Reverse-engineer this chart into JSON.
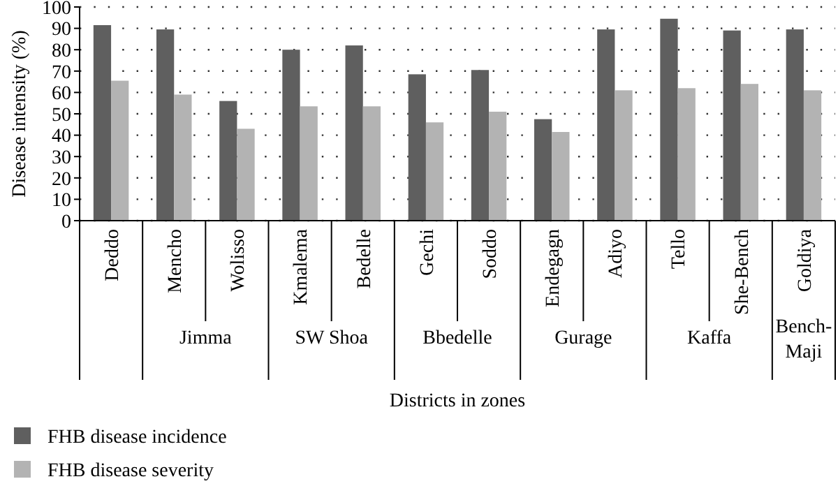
{
  "chart_data": {
    "type": "bar",
    "xlabel": "Districts in zones",
    "ylabel": "Disease intensity (%)",
    "categories": [
      "Deddo",
      "Mencho",
      "Wolisso",
      "Kmalema",
      "Bedelle",
      "Gechi",
      "Soddo",
      "Endegagn",
      "Adiyo",
      "Tello",
      "She-Bench",
      "Goldiya"
    ],
    "series": [
      {
        "name": "FHB disease incidence",
        "color": "#5f5f5f",
        "values": [
          91.5,
          89.5,
          56,
          80,
          82,
          68.5,
          70.5,
          47.5,
          89.5,
          94.5,
          89,
          89.5
        ]
      },
      {
        "name": "FHB disease severity",
        "color": "#b3b3b3",
        "values": [
          65.5,
          59,
          43,
          53.5,
          53.5,
          46,
          51,
          41.5,
          61,
          62,
          64,
          61
        ]
      }
    ],
    "annotations": [
      "Jimma",
      "SW Shoa",
      "Bbedelle",
      "Gurage",
      "Kaffa",
      "Bench-Maji"
    ],
    "ylim": [
      0,
      100
    ],
    "yticks": [
      0,
      10,
      20,
      30,
      40,
      50,
      60,
      70,
      80,
      90,
      100
    ],
    "grid": "y",
    "legend": "bottom left"
  }
}
